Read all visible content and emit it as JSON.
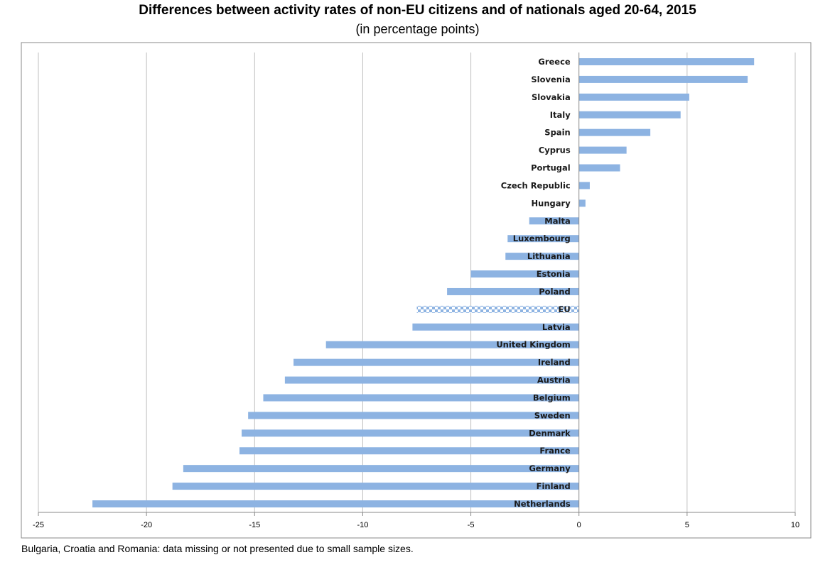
{
  "chart_data": {
    "type": "bar",
    "orientation": "horizontal",
    "title": "Differences between activity rates of non-EU citizens and of nationals aged 20-64, 2015",
    "subtitle": "(in percentage points)",
    "note": "Bulgaria, Croatia and Romania: data missing or not presented due to small sample sizes.",
    "categories": [
      "Greece",
      "Slovenia",
      "Slovakia",
      "Italy",
      "Spain",
      "Cyprus",
      "Portugal",
      "Czech Republic",
      "Hungary",
      "Malta",
      "Luxembourg",
      "Lithuania",
      "Estonia",
      "Poland",
      "EU",
      "Latvia",
      "United Kingdom",
      "Ireland",
      "Austria",
      "Belgium",
      "Sweden",
      "Denmark",
      "France",
      "Germany",
      "Finland",
      "Netherlands"
    ],
    "values": [
      8.1,
      7.8,
      5.1,
      4.7,
      3.3,
      2.2,
      1.9,
      0.5,
      0.3,
      -2.3,
      -3.3,
      -3.4,
      -5.0,
      -6.1,
      -7.5,
      -7.7,
      -11.7,
      -13.2,
      -13.6,
      -14.6,
      -15.3,
      -15.6,
      -15.7,
      -18.3,
      -18.8,
      -22.5
    ],
    "highlight": {
      "category": "EU",
      "pattern": "checkered"
    },
    "xlim": [
      -25,
      10
    ],
    "xticks": [
      "-25",
      "-20",
      "-15",
      "-10",
      "-5",
      "0",
      "5",
      "10"
    ],
    "grid": "vertical",
    "colors": {
      "bar": "#8db3e2",
      "eu_pattern": "#8db3e2",
      "grid": "#bfbfbf"
    }
  }
}
